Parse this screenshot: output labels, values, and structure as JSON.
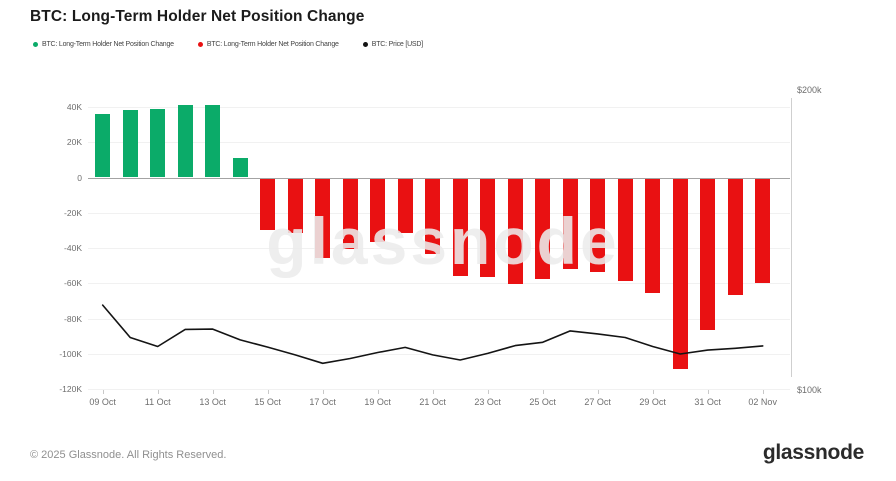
{
  "header": {
    "title": "BTC: Long-Term Holder Net Position Change"
  },
  "legend": [
    {
      "label": "BTC: Long-Term Holder Net Position Change",
      "color": "#0bab69"
    },
    {
      "label": "BTC: Long-Term Holder Net Position Change",
      "color": "#e91112"
    },
    {
      "label": "BTC: Price [USD]",
      "color": "#141414"
    }
  ],
  "chart_data": {
    "type": "bar",
    "title": "BTC: Long-Term Holder Net Position Change",
    "watermark": "glassnode",
    "categories": [
      "09 Oct",
      "10 Oct",
      "11 Oct",
      "12 Oct",
      "13 Oct",
      "14 Oct",
      "15 Oct",
      "16 Oct",
      "17 Oct",
      "18 Oct",
      "19 Oct",
      "20 Oct",
      "21 Oct",
      "22 Oct",
      "23 Oct",
      "24 Oct",
      "25 Oct",
      "26 Oct",
      "27 Oct",
      "28 Oct",
      "29 Oct",
      "30 Oct",
      "31 Oct",
      "01 Nov",
      "02 Nov"
    ],
    "series": [
      {
        "name": "BTC: Long-Term Holder Net Position Change",
        "type": "bar",
        "positive_color": "#0bab69",
        "negative_color": "#e91112",
        "values": [
          36000,
          38000,
          39000,
          41000,
          41000,
          11000,
          -29000,
          -31000,
          -45000,
          -40000,
          -36000,
          -31000,
          -43000,
          -55000,
          -56000,
          -60000,
          -57000,
          -51000,
          -53000,
          -58000,
          -65000,
          -108000,
          -86000,
          -66000,
          -59000
        ]
      },
      {
        "name": "BTC: Price [USD]",
        "type": "line",
        "color": "#141414",
        "values": [
          128300,
          117500,
          114500,
          120200,
          120300,
          116700,
          114300,
          111700,
          108900,
          110500,
          112500,
          114200,
          111700,
          110000,
          112200,
          114800,
          115900,
          119700,
          118700,
          117500,
          114500,
          112000,
          113300,
          113900,
          114700
        ]
      }
    ],
    "left_axis": {
      "min": -120000,
      "max": 40000,
      "ticks": [
        {
          "label": "40K",
          "value": 40000
        },
        {
          "label": "20K",
          "value": 20000
        },
        {
          "label": "0",
          "value": 0
        },
        {
          "label": "-20K",
          "value": -20000
        },
        {
          "label": "-40K",
          "value": -40000
        },
        {
          "label": "-60K",
          "value": -60000
        },
        {
          "label": "-80K",
          "value": -80000
        },
        {
          "label": "-100K",
          "value": -100000
        },
        {
          "label": "-120K",
          "value": -120000
        }
      ]
    },
    "right_axis": {
      "min": 100000,
      "max": 200000,
      "ticks": [
        {
          "label": "$200k",
          "value": 200000
        },
        {
          "label": "$100k",
          "value": 100000
        }
      ]
    },
    "x_tick_labels": [
      "09 Oct",
      "11 Oct",
      "13 Oct",
      "15 Oct",
      "17 Oct",
      "19 Oct",
      "21 Oct",
      "23 Oct",
      "25 Oct",
      "27 Oct",
      "29 Oct",
      "31 Oct",
      "02 Nov"
    ],
    "grid": true,
    "legend_position": "top-left"
  },
  "footer": {
    "copyright": "© 2025 Glassnode. All Rights Reserved.",
    "brand": "glassnode"
  }
}
